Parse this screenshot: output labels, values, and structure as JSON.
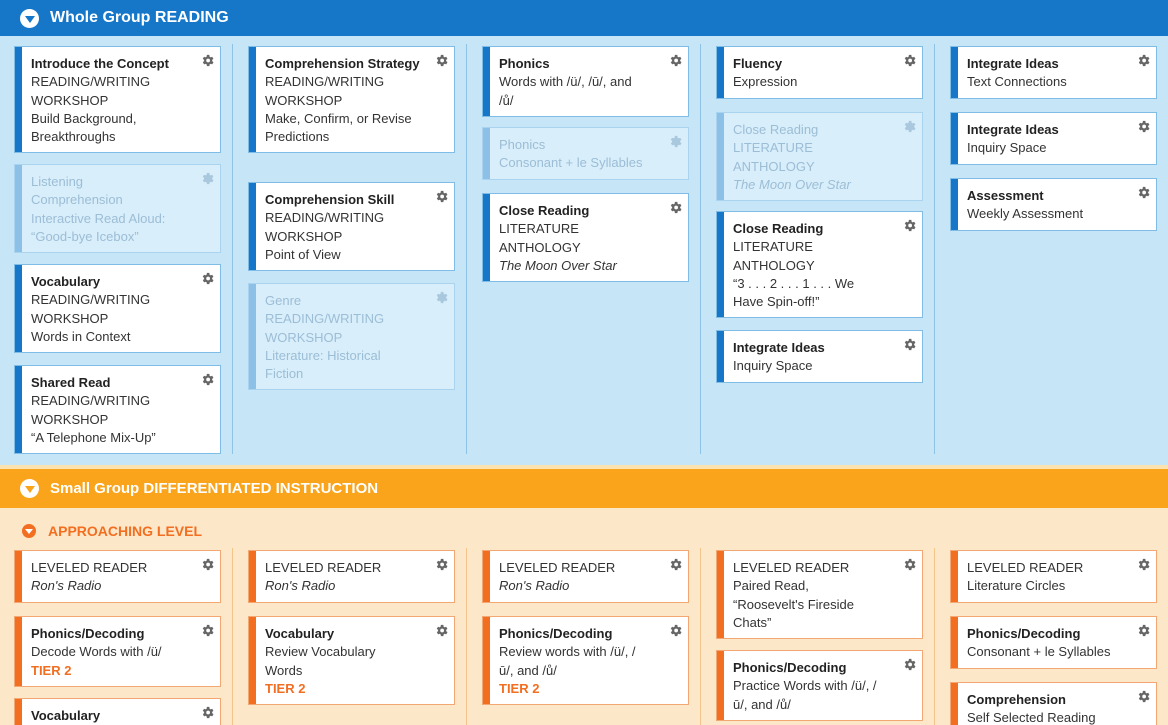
{
  "whole_group": {
    "title_prefix": "Whole Group",
    "title_main": "READING",
    "columns": [
      [
        {
          "title": "Introduce the Concept",
          "lines": [
            "READING/WRITING",
            "WORKSHOP",
            "Build Background,",
            "Breakthroughs"
          ],
          "faded": false
        },
        {
          "title": "Listening",
          "lines": [
            "Comprehension",
            "Interactive Read Aloud:",
            "“Good-bye Icebox”"
          ],
          "faded": true
        },
        {
          "title": "Vocabulary",
          "lines": [
            "READING/WRITING",
            "WORKSHOP",
            "Words in Context"
          ],
          "faded": false
        },
        {
          "title": "Shared Read",
          "lines": [
            "READING/WRITING",
            "WORKSHOP",
            "“A Telephone Mix-Up”"
          ],
          "faded": false
        }
      ],
      [
        {
          "title": "Comprehension Strategy",
          "lines": [
            "READING/WRITING",
            "WORKSHOP",
            "Make, Confirm, or Revise",
            "Predictions"
          ],
          "faded": false
        },
        {
          "title": "Comprehension Skill",
          "lines": [
            "READING/WRITING",
            "WORKSHOP",
            "Point of View"
          ],
          "faded": false
        },
        {
          "title": "Genre",
          "lines": [
            "READING/WRITING",
            "WORKSHOP",
            "Literature: Historical",
            "Fiction"
          ],
          "faded": true
        }
      ],
      [
        {
          "title": "Phonics",
          "lines": [
            "Words with /ü/, /ū/, and",
            "/ů/"
          ],
          "faded": false
        },
        {
          "title": "Phonics",
          "lines": [
            "Consonant + le Syllables"
          ],
          "faded": true
        },
        {
          "title": "Close Reading",
          "lines": [
            "LITERATURE",
            "ANTHOLOGY"
          ],
          "italic": "The Moon Over Star",
          "faded": false
        }
      ],
      [
        {
          "title": "Fluency",
          "lines": [
            "Expression"
          ],
          "faded": false
        },
        {
          "title": "Close Reading",
          "lines": [
            "LITERATURE",
            "ANTHOLOGY"
          ],
          "italic": "The Moon Over Star",
          "faded": true
        },
        {
          "title": "Close Reading",
          "lines": [
            "LITERATURE",
            "ANTHOLOGY",
            "“3 . . . 2 . . . 1 . . . We",
            "Have Spin-off!”"
          ],
          "faded": false
        },
        {
          "title": "Integrate Ideas",
          "lines": [
            "Inquiry Space"
          ],
          "faded": false
        }
      ],
      [
        {
          "title": "Integrate Ideas",
          "lines": [
            "Text Connections"
          ],
          "faded": false
        },
        {
          "title": "Integrate Ideas",
          "lines": [
            "Inquiry Space"
          ],
          "faded": false
        },
        {
          "title": "Assessment",
          "lines": [
            "Weekly Assessment"
          ],
          "faded": false
        }
      ]
    ]
  },
  "small_group": {
    "title_prefix": "Small Group",
    "title_main": "DIFFERENTIATED INSTRUCTION",
    "level": "APPROACHING LEVEL",
    "columns": [
      [
        {
          "title": "LEVELED READER",
          "italic": "Ron's Radio"
        },
        {
          "title": "Phonics/Decoding",
          "lines": [
            "Decode Words with /ü/"
          ],
          "tier": "TIER 2"
        },
        {
          "title": "Vocabulary"
        }
      ],
      [
        {
          "title": "LEVELED READER",
          "italic": "Ron's Radio"
        },
        {
          "title": "Vocabulary",
          "lines": [
            "Review Vocabulary",
            "Words"
          ],
          "tier": "TIER 2"
        }
      ],
      [
        {
          "title": "LEVELED READER",
          "italic": "Ron's Radio"
        },
        {
          "title": "Phonics/Decoding",
          "lines": [
            "Review words with /ü/, /",
            "ū/, and /ů/"
          ],
          "tier": "TIER 2"
        }
      ],
      [
        {
          "title": "LEVELED READER",
          "lines": [
            "Paired Read,",
            "“Roosevelt's Fireside",
            "Chats”"
          ]
        },
        {
          "title": "Phonics/Decoding",
          "lines": [
            "Practice Words with /ü/, /",
            "ū/, and /ů/"
          ]
        }
      ],
      [
        {
          "title": "LEVELED READER",
          "lines": [
            "Literature Circles"
          ]
        },
        {
          "title": "Phonics/Decoding",
          "lines": [
            "Consonant + le Syllables"
          ]
        },
        {
          "title": "Comprehension",
          "lines": [
            "Self Selected Reading"
          ]
        }
      ]
    ]
  }
}
